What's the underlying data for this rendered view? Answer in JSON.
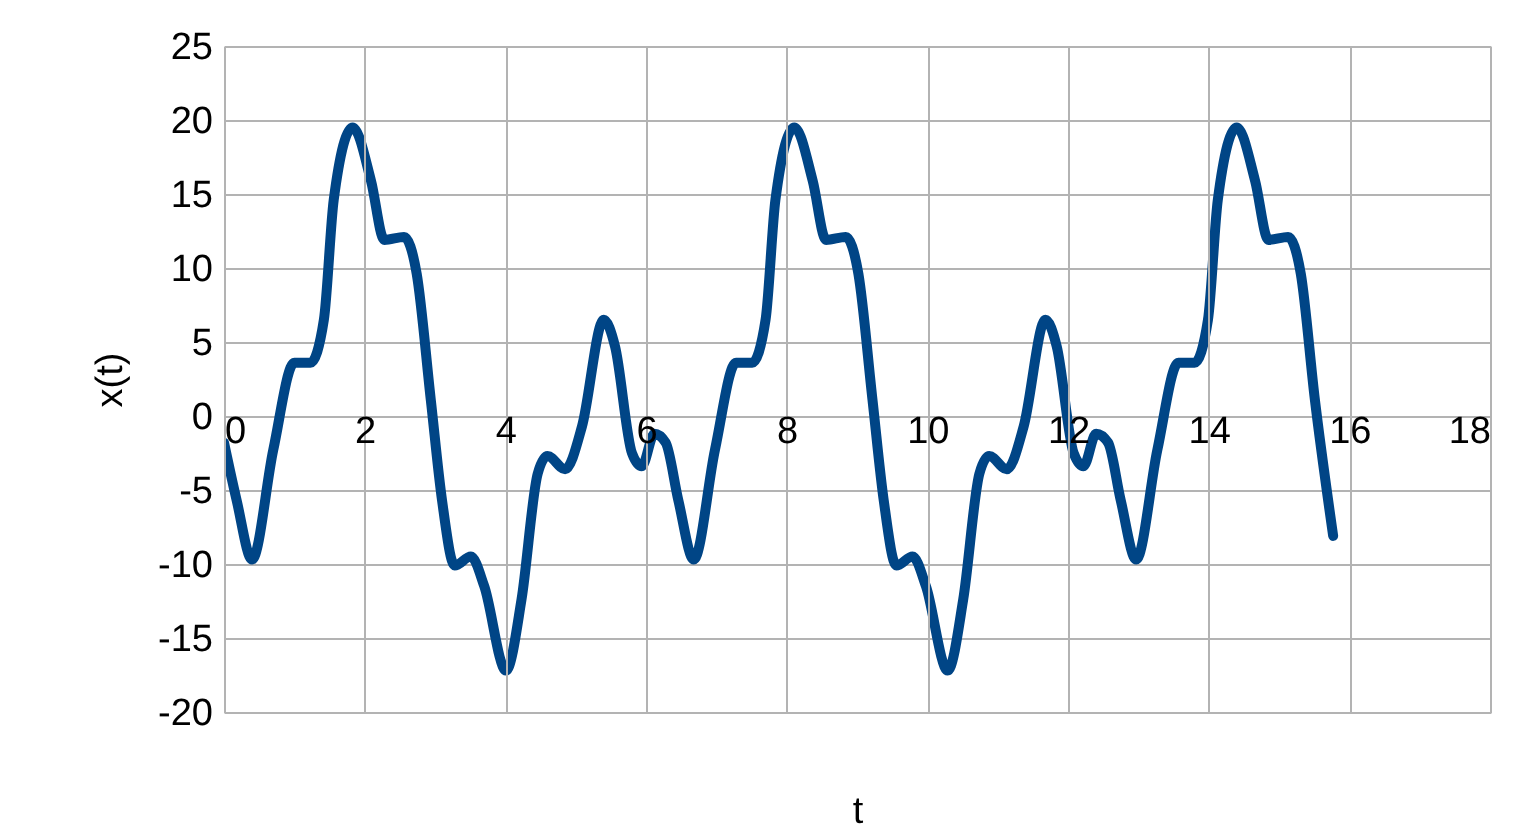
{
  "chart_data": {
    "type": "line",
    "xlabel": "t",
    "ylabel": "x(t)",
    "xlim": [
      0,
      18
    ],
    "xticks": [
      0,
      2,
      4,
      6,
      8,
      10,
      12,
      14,
      16,
      18
    ],
    "ylim": [
      -20,
      25
    ],
    "yticks": [
      -20,
      -15,
      -10,
      -5,
      0,
      5,
      10,
      15,
      20,
      25
    ],
    "grid": true,
    "marker": "none",
    "line_style": "solid",
    "series": [
      {
        "color": "#004586",
        "x": [
          0,
          0.18,
          0.4,
          0.7,
          1.0,
          1.23,
          1.42,
          1.56,
          1.83,
          2.09,
          2.28,
          2.56,
          2.74,
          2.94,
          3.1,
          3.28,
          3.51,
          3.7,
          4.01,
          4.23,
          4.46,
          4.6,
          4.85,
          5.09,
          5.4,
          5.56,
          5.8,
          5.94,
          6.12,
          6.28,
          6.46,
          6.68,
          6.98,
          7.28,
          7.51,
          7.7,
          7.84,
          8.11,
          8.37,
          8.56,
          8.84,
          9.02,
          9.22,
          9.38,
          9.56,
          9.79,
          9.98,
          10.29,
          10.51,
          10.74,
          10.88,
          11.13,
          11.37,
          11.68,
          11.84,
          12.08,
          12.22,
          12.4,
          12.57,
          12.75,
          12.97,
          13.27,
          13.57,
          13.8,
          13.99,
          14.13,
          14.4,
          14.66,
          14.85,
          15.13,
          15.31,
          15.51,
          15.77
        ],
        "values": [
          -1.8,
          -5.7,
          -9.7,
          -2.3,
          3.6,
          3.6,
          6.5,
          14.6,
          19.5,
          15.9,
          11.9,
          12.1,
          9.6,
          1.1,
          -5.7,
          -10.1,
          -9.5,
          -11.5,
          -17.2,
          -12.4,
          -3.9,
          -2.7,
          -3.6,
          -0.7,
          6.5,
          4.7,
          -2.5,
          -3.4,
          -1.2,
          -1.8,
          -5.7,
          -9.7,
          -2.3,
          3.6,
          3.6,
          6.5,
          14.6,
          19.5,
          15.9,
          11.9,
          12.1,
          9.6,
          1.1,
          -5.7,
          -10.1,
          -9.5,
          -11.5,
          -17.2,
          -12.4,
          -3.9,
          -2.7,
          -3.6,
          -0.7,
          6.5,
          4.7,
          -2.5,
          -3.4,
          -1.2,
          -1.8,
          -5.7,
          -9.7,
          -2.3,
          3.6,
          3.6,
          6.5,
          14.6,
          19.5,
          15.9,
          11.9,
          12.1,
          9.6,
          1.1,
          -8.1
        ]
      }
    ]
  }
}
